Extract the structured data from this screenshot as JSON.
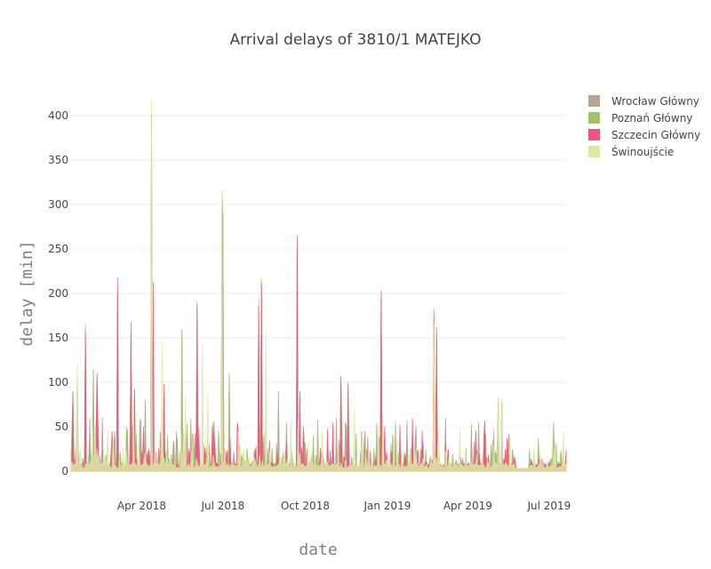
{
  "chart_data": {
    "type": "area",
    "title": "Arrival delays of 3810/1 MATEJKO",
    "xlabel": "date",
    "ylabel": "delay [min]",
    "x_range": [
      "2018-01-12",
      "2019-07-20"
    ],
    "ylim": [
      -20,
      430
    ],
    "yticks": [
      0,
      50,
      100,
      150,
      200,
      250,
      300,
      350,
      400
    ],
    "xticks": [
      {
        "date": "2018-04-01",
        "label": "Apr 2018"
      },
      {
        "date": "2018-07-01",
        "label": "Jul 2018"
      },
      {
        "date": "2018-10-01",
        "label": "Oct 2018"
      },
      {
        "date": "2019-01-01",
        "label": "Jan 2019"
      },
      {
        "date": "2019-04-01",
        "label": "Apr 2019"
      },
      {
        "date": "2019-07-01",
        "label": "Jul 2019"
      }
    ],
    "grid": true,
    "legend_position": "top-right",
    "baseline": 3,
    "series": [
      {
        "name": "Wrocław Główny",
        "color": "#b8a590",
        "opacity": 1.0,
        "peaks": [
          [
            "2018-01-14",
            90
          ],
          [
            "2018-01-19",
            108
          ],
          [
            "2018-01-28",
            160
          ],
          [
            "2018-02-06",
            115
          ],
          [
            "2018-02-10",
            105
          ],
          [
            "2018-02-16",
            60
          ],
          [
            "2018-03-02",
            45
          ],
          [
            "2018-03-05",
            200
          ],
          [
            "2018-03-20",
            155
          ],
          [
            "2018-03-24",
            90
          ],
          [
            "2018-04-05",
            80
          ],
          [
            "2018-04-12",
            400
          ],
          [
            "2018-04-26",
            90
          ],
          [
            "2018-05-10",
            45
          ],
          [
            "2018-05-16",
            160
          ],
          [
            "2018-05-29",
            40
          ],
          [
            "2018-06-02",
            185
          ],
          [
            "2018-06-30",
            300
          ],
          [
            "2018-07-01",
            288
          ],
          [
            "2018-07-08",
            110
          ],
          [
            "2018-08-10",
            185
          ],
          [
            "2018-08-13",
            210
          ],
          [
            "2018-09-01",
            90
          ],
          [
            "2018-09-10",
            55
          ],
          [
            "2018-09-22",
            255
          ],
          [
            "2018-09-25",
            88
          ],
          [
            "2018-10-10",
            20
          ],
          [
            "2018-11-01",
            50
          ],
          [
            "2018-11-10",
            105
          ],
          [
            "2018-11-18",
            95
          ],
          [
            "2018-12-03",
            45
          ],
          [
            "2018-12-25",
            200
          ],
          [
            "2019-02-01",
            35
          ],
          [
            "2019-02-22",
            175
          ],
          [
            "2019-02-25",
            155
          ],
          [
            "2019-03-10",
            25
          ],
          [
            "2019-04-20",
            45
          ],
          [
            "2019-04-29",
            35
          ],
          [
            "2019-05-05",
            70
          ],
          [
            "2019-05-09",
            75
          ],
          [
            "2019-05-16",
            30
          ],
          [
            "2019-05-21",
            25
          ]
        ]
      },
      {
        "name": "Poznań Główny",
        "color": "#a3bf72",
        "opacity": 0.9,
        "peaks": [
          [
            "2018-01-14",
            85
          ],
          [
            "2018-01-19",
            100
          ],
          [
            "2018-01-28",
            165
          ],
          [
            "2018-02-06",
            112
          ],
          [
            "2018-02-10",
            102
          ],
          [
            "2018-03-05",
            205
          ],
          [
            "2018-03-20",
            150
          ],
          [
            "2018-04-12",
            405
          ],
          [
            "2018-05-16",
            158
          ],
          [
            "2018-06-02",
            182
          ],
          [
            "2018-06-30",
            317
          ],
          [
            "2018-07-01",
            285
          ],
          [
            "2018-07-08",
            108
          ],
          [
            "2018-08-10",
            195
          ],
          [
            "2018-08-13",
            217
          ],
          [
            "2018-09-22",
            250
          ],
          [
            "2018-11-10",
            100
          ],
          [
            "2018-11-18",
            98
          ],
          [
            "2018-12-25",
            198
          ],
          [
            "2019-02-22",
            172
          ],
          [
            "2019-02-25",
            150
          ],
          [
            "2019-05-05",
            78
          ],
          [
            "2019-05-09",
            80
          ]
        ]
      },
      {
        "name": "Szczecin Główny",
        "color": "#e8577e",
        "opacity": 0.85,
        "peaks": [
          [
            "2018-01-14",
            88
          ],
          [
            "2018-01-28",
            157
          ],
          [
            "2018-02-10",
            110
          ],
          [
            "2018-03-05",
            218
          ],
          [
            "2018-03-20",
            168
          ],
          [
            "2018-03-24",
            93
          ],
          [
            "2018-04-12",
            400
          ],
          [
            "2018-04-14",
            213
          ],
          [
            "2018-04-26",
            98
          ],
          [
            "2018-06-02",
            190
          ],
          [
            "2018-06-30",
            303
          ],
          [
            "2018-08-10",
            185
          ],
          [
            "2018-08-13",
            212
          ],
          [
            "2018-09-22",
            265
          ],
          [
            "2018-09-25",
            90
          ],
          [
            "2018-11-01",
            55
          ],
          [
            "2018-11-10",
            107
          ],
          [
            "2018-11-18",
            100
          ],
          [
            "2018-12-25",
            203
          ],
          [
            "2019-02-22",
            182
          ],
          [
            "2019-02-25",
            162
          ],
          [
            "2019-04-20",
            57
          ],
          [
            "2019-05-05",
            82
          ],
          [
            "2019-05-09",
            80
          ]
        ]
      },
      {
        "name": "Świnoujście",
        "color": "#d9e8a3",
        "opacity": 0.85,
        "peaks": [
          [
            "2018-01-19",
            122
          ],
          [
            "2018-03-23",
            72
          ],
          [
            "2018-04-12",
            417
          ],
          [
            "2018-04-24",
            145
          ],
          [
            "2018-05-20",
            85
          ],
          [
            "2018-05-28",
            40
          ],
          [
            "2018-06-08",
            142
          ],
          [
            "2018-06-14",
            88
          ],
          [
            "2018-06-30",
            317
          ],
          [
            "2018-08-18",
            155
          ],
          [
            "2018-11-25",
            70
          ],
          [
            "2018-12-27",
            65
          ],
          [
            "2019-02-22",
            168
          ],
          [
            "2019-05-05",
            83
          ],
          [
            "2019-05-09",
            80
          ]
        ]
      }
    ]
  }
}
